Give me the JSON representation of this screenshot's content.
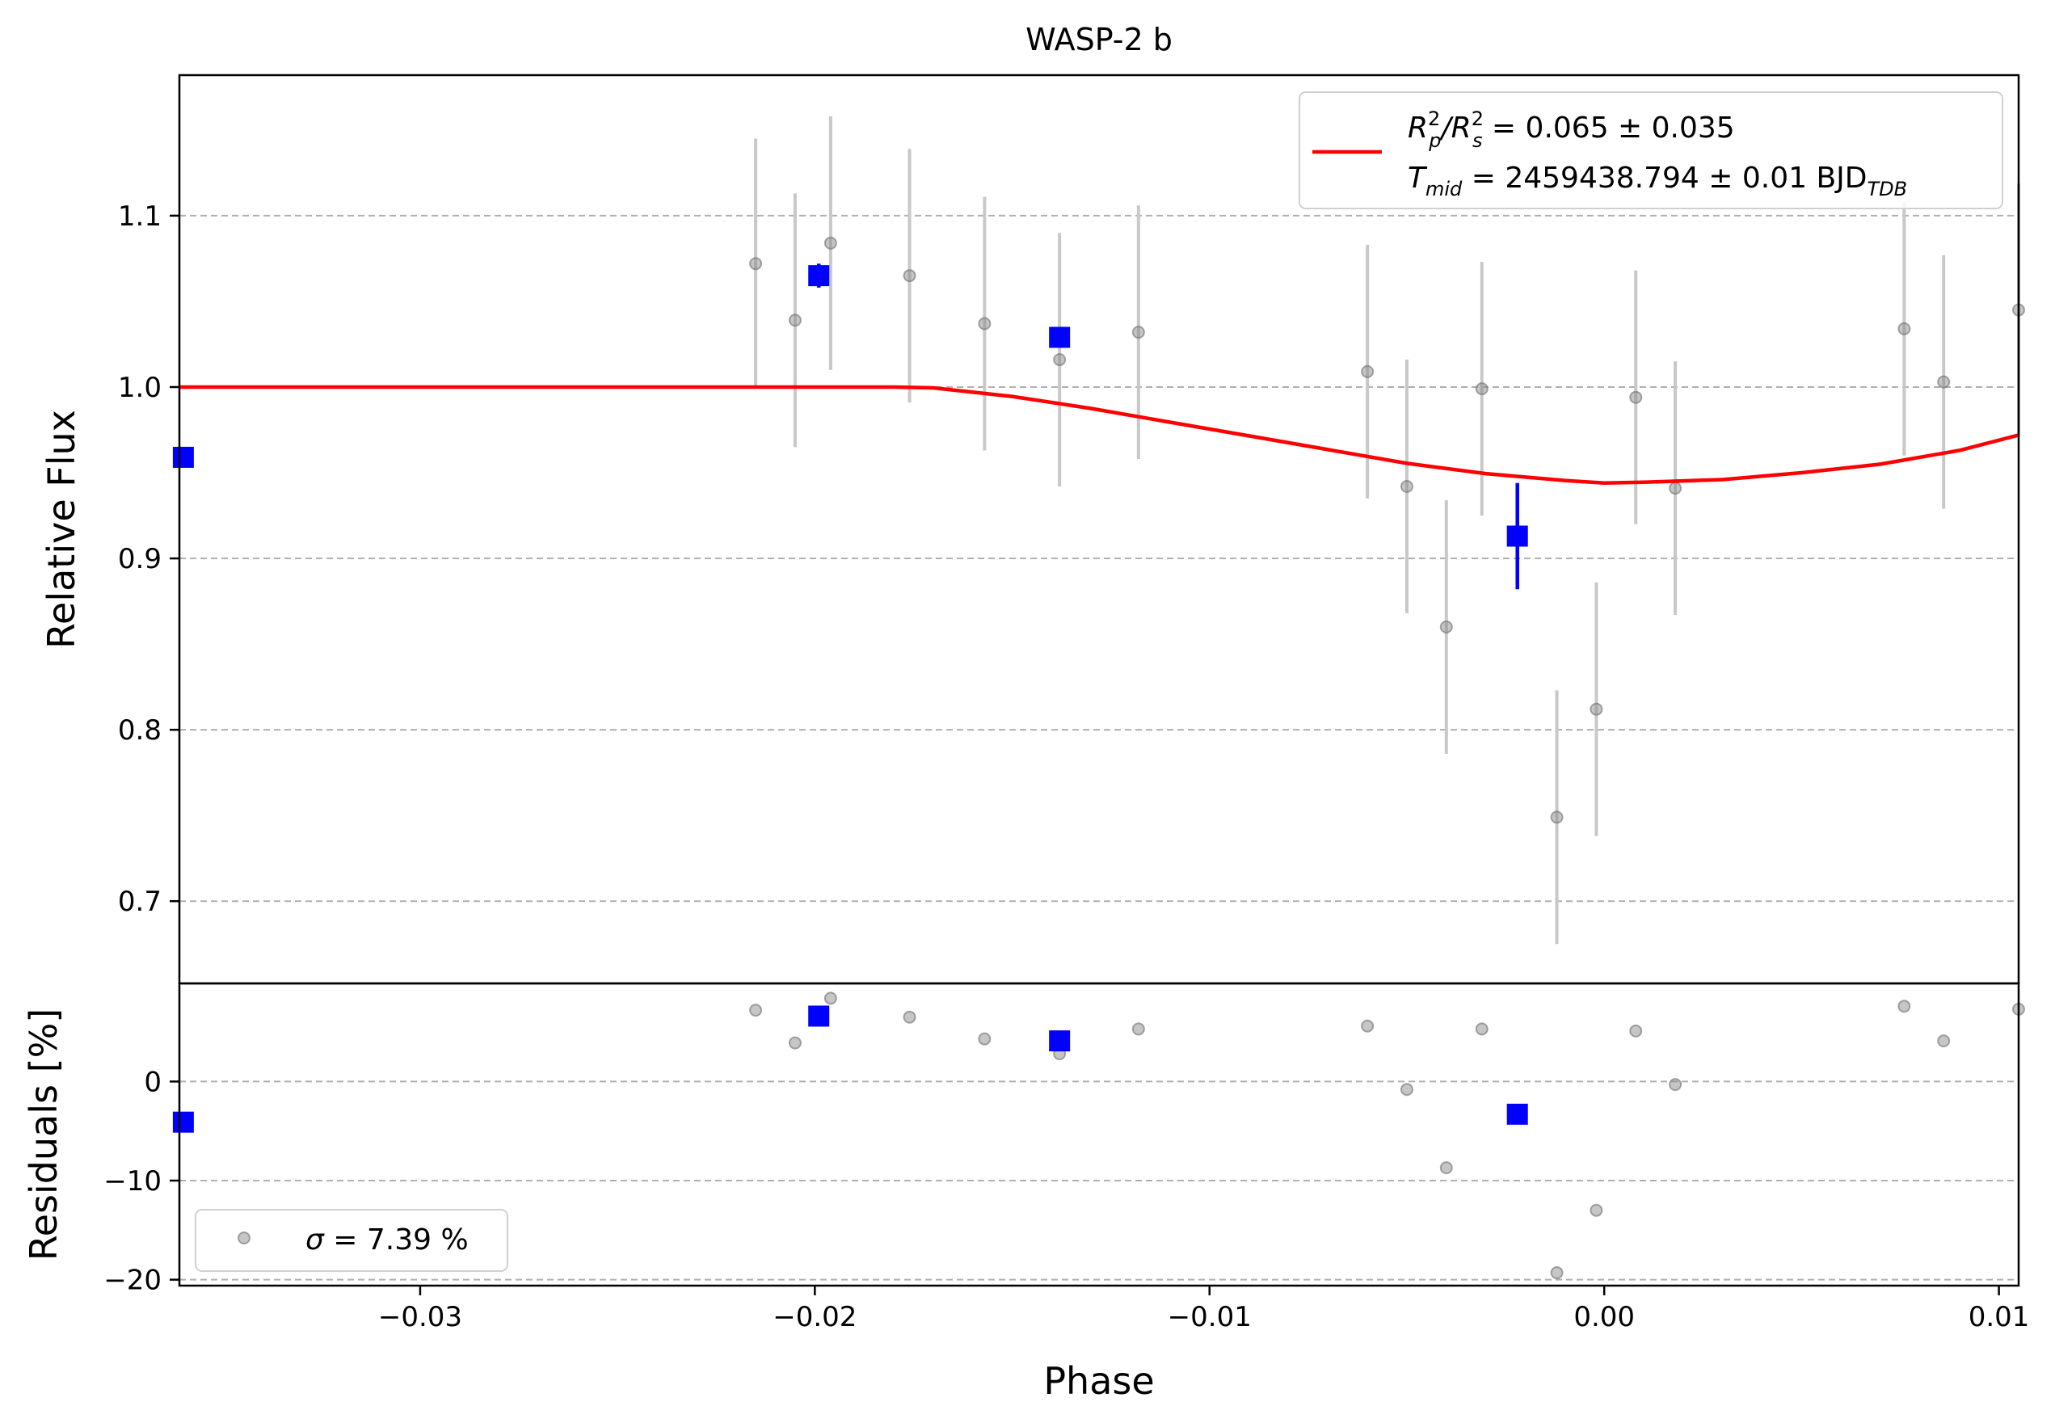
{
  "chart_data": [
    {
      "type": "scatter",
      "panel": "main",
      "title": "WASP-2 b",
      "xlabel": "",
      "ylabel": "Relative Flux",
      "xlim": [
        -0.0361,
        0.0105
      ],
      "ylim": [
        0.652,
        1.182
      ],
      "yticks": [
        0.7,
        0.8,
        0.9,
        1.0,
        1.1
      ],
      "ytick_labels": [
        "0.7",
        "0.8",
        "0.9",
        "1.0",
        "1.1"
      ],
      "grid": "horizontal dashed",
      "legend": {
        "placement": "top-right",
        "line1_main": "R",
        "line1_sup1": "2",
        "line1_sub1": "p",
        "line1_slash": "/R",
        "line1_sup2": "2",
        "line1_sub2": "s",
        "line1_value": " = 0.065 ± 0.035",
        "line2_main": "T",
        "line2_sub": "mid",
        "line2_value": " = 2459438.794 ± 0.01 BJD",
        "line2_unit_sub": "TDB"
      },
      "colors": {
        "raw": "#808080",
        "errorbar": "#c8c8c8",
        "binned": "#0000ff",
        "model": "#ff0000",
        "grid": "#b0b0b0"
      },
      "raw_points": [
        {
          "x": -0.0215,
          "y": 1.072,
          "err": 0.073
        },
        {
          "x": -0.0205,
          "y": 1.039,
          "err": 0.074
        },
        {
          "x": -0.0196,
          "y": 1.084,
          "err": 0.074
        },
        {
          "x": -0.0176,
          "y": 1.065,
          "err": 0.074
        },
        {
          "x": -0.0157,
          "y": 1.037,
          "err": 0.074
        },
        {
          "x": -0.0138,
          "y": 1.016,
          "err": 0.074
        },
        {
          "x": -0.0118,
          "y": 1.032,
          "err": 0.074
        },
        {
          "x": -0.006,
          "y": 1.009,
          "err": 0.074
        },
        {
          "x": -0.005,
          "y": 0.942,
          "err": 0.074
        },
        {
          "x": -0.004,
          "y": 0.86,
          "err": 0.074
        },
        {
          "x": -0.0031,
          "y": 0.999,
          "err": 0.074
        },
        {
          "x": -0.0012,
          "y": 0.749,
          "err": 0.074
        },
        {
          "x": -0.0002,
          "y": 0.812,
          "err": 0.074
        },
        {
          "x": 0.0008,
          "y": 0.994,
          "err": 0.074
        },
        {
          "x": 0.0018,
          "y": 0.941,
          "err": 0.074
        },
        {
          "x": 0.0076,
          "y": 1.034,
          "err": 0.074
        },
        {
          "x": 0.0086,
          "y": 1.003,
          "err": 0.074
        },
        {
          "x": 0.0105,
          "y": 1.045,
          "err": 0.074
        }
      ],
      "binned_points": [
        {
          "x": -0.036,
          "y": 0.959,
          "err": 0.0
        },
        {
          "x": -0.0199,
          "y": 1.065,
          "err": 0.007
        },
        {
          "x": -0.0138,
          "y": 1.029,
          "err": 0.0
        },
        {
          "x": -0.0022,
          "y": 0.913,
          "err": 0.031
        }
      ],
      "model": {
        "name": "",
        "x": [
          -0.0361,
          -0.018,
          -0.017,
          -0.015,
          -0.013,
          -0.011,
          -0.009,
          -0.007,
          -0.005,
          -0.003,
          -0.001,
          0.0,
          0.001,
          0.003,
          0.005,
          0.007,
          0.009,
          0.0105
        ],
        "y": [
          1.0,
          1.0,
          0.9995,
          0.9945,
          0.9875,
          0.9795,
          0.9715,
          0.9635,
          0.9555,
          0.9495,
          0.9455,
          0.944,
          0.9445,
          0.946,
          0.95,
          0.955,
          0.963,
          0.972
        ]
      }
    },
    {
      "type": "scatter",
      "panel": "residuals",
      "xlabel": "Phase",
      "ylabel": "Residuals [%]",
      "xlim": [
        -0.0361,
        0.0105
      ],
      "ylim": [
        -20.6,
        9.9
      ],
      "xticks": [
        -0.03,
        -0.02,
        -0.01,
        0.0,
        0.01
      ],
      "xtick_labels": [
        "−0.03",
        "−0.02",
        "−0.01",
        "0.00",
        "0.01"
      ],
      "yticks": [
        -20,
        -10,
        0
      ],
      "ytick_labels": [
        "−20",
        "−10",
        "0"
      ],
      "grid": "horizontal dashed",
      "legend": {
        "placement": "bottom-left",
        "sigma_symbol": "σ",
        "text": " = 7.39 %"
      },
      "raw_points": [
        {
          "x": -0.0215,
          "y": 7.2
        },
        {
          "x": -0.0205,
          "y": 3.9
        },
        {
          "x": -0.0196,
          "y": 8.4
        },
        {
          "x": -0.0176,
          "y": 6.5
        },
        {
          "x": -0.0157,
          "y": 4.3
        },
        {
          "x": -0.0138,
          "y": 2.8
        },
        {
          "x": -0.0118,
          "y": 5.3
        },
        {
          "x": -0.006,
          "y": 5.6
        },
        {
          "x": -0.005,
          "y": -0.8
        },
        {
          "x": -0.004,
          "y": -8.7
        },
        {
          "x": -0.0031,
          "y": 5.3
        },
        {
          "x": -0.0012,
          "y": -19.3
        },
        {
          "x": -0.0002,
          "y": -13.0
        },
        {
          "x": 0.0008,
          "y": 5.1
        },
        {
          "x": 0.0018,
          "y": -0.3
        },
        {
          "x": 0.0076,
          "y": 7.6
        },
        {
          "x": 0.0086,
          "y": 4.1
        },
        {
          "x": 0.0105,
          "y": 7.3
        }
      ],
      "binned_points": [
        {
          "x": -0.036,
          "y": -4.1
        },
        {
          "x": -0.0199,
          "y": 6.6
        },
        {
          "x": -0.0138,
          "y": 4.1
        },
        {
          "x": -0.0022,
          "y": -3.3
        }
      ]
    }
  ]
}
